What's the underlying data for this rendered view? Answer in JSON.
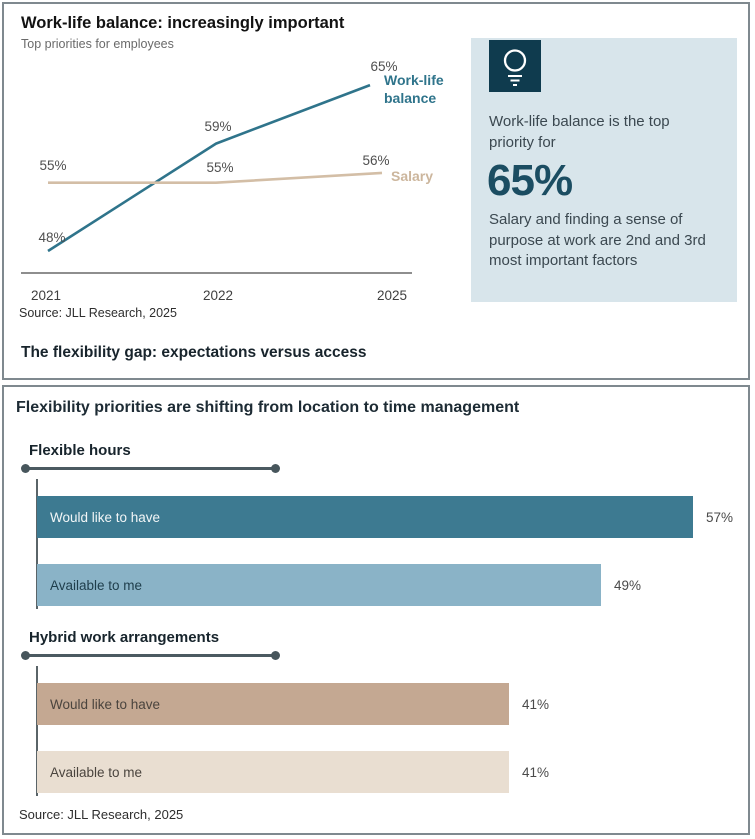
{
  "panel_top": {
    "subtitle": "Top priorities for employees",
    "source": "Source: JLL Research, 2025",
    "footer_heading": "The flexibility gap: expectations versus access",
    "callout": {
      "icon": "lightbulb-icon",
      "bg_color": "#d8e5eb",
      "icon_bg_color": "#0f3b4e",
      "big_value_color": "#1b4d62",
      "intro": "Work-life balance is the top priority for",
      "big_value": "65%",
      "body": "Salary and finding a sense of purpose at work are 2nd and 3rd most important factors"
    }
  },
  "panel_bottom": {
    "source": "Source: JLL Research, 2025"
  },
  "chart_data": [
    {
      "type": "line",
      "title": "Work-life balance: increasingly important",
      "subtitle": "Top priorities for employees",
      "x": [
        "2021",
        "2022",
        "2025"
      ],
      "series": [
        {
          "name": "Work-life balance",
          "label_lines": [
            "Work-life",
            "balance"
          ],
          "values": [
            48,
            59,
            65
          ],
          "point_labels": [
            "48%",
            "59%",
            "65%"
          ],
          "color": "#2f748b"
        },
        {
          "name": "Salary",
          "label_lines": [
            "Salary"
          ],
          "values": [
            55,
            55,
            56
          ],
          "point_labels": [
            "55%",
            "55%",
            "56%"
          ],
          "color": "#d3bea6"
        }
      ],
      "ylim": [
        45,
        68
      ],
      "grid": false,
      "legend_position": "line-end-labels",
      "source": "Source: JLL Research, 2025"
    },
    {
      "type": "bar",
      "title": "Flexibility priorities are shifting from location to time management",
      "orientation": "horizontal",
      "xlim": [
        0,
        60
      ],
      "groups": [
        {
          "label": "Flexible hours",
          "bars": [
            {
              "label": "Would like to have",
              "value": 57,
              "display": "57%",
              "color": "#3d7a91"
            },
            {
              "label": "Available to me",
              "value": 49,
              "display": "49%",
              "color": "#8ab3c7"
            }
          ]
        },
        {
          "label": "Hybrid work arrangements",
          "bars": [
            {
              "label": "Would like to have",
              "value": 41,
              "display": "41%",
              "color": "#c4a892"
            },
            {
              "label": "Available to me",
              "value": 41,
              "display": "41%",
              "color": "#e9ded1"
            }
          ]
        }
      ],
      "source": "Source: JLL Research, 2025"
    }
  ]
}
